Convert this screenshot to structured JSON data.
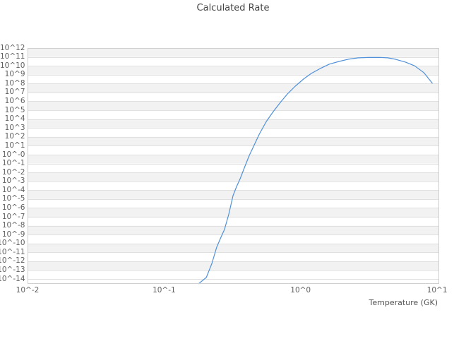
{
  "page": {
    "background": "#ffffff"
  },
  "chart_data": {
    "type": "line",
    "title": "Calculated Rate",
    "xlabel": "Temperature (GK)",
    "ylabel": "",
    "x_scale": "log",
    "y_scale": "log",
    "grid": "horizontal-bands",
    "legend": "none",
    "x_ticks": [
      "10^-2",
      "10^-1",
      "10^0",
      "10^1"
    ],
    "y_ticks": [
      "10^12",
      "10^11",
      "10^10",
      "10^9",
      "10^8",
      "10^7",
      "10^6",
      "10^5",
      "10^4",
      "10^3",
      "10^2",
      "10^1",
      "10^-0",
      "10^-1",
      "10^-2",
      "10^-3",
      "10^-4",
      "10^-5",
      "10^-6",
      "10^-7",
      "10^-8",
      "10^-9",
      "10^-10",
      "10^-11",
      "10^-12",
      "10^-13",
      "10^-14"
    ],
    "xlog_range": [
      -2,
      1.015
    ],
    "ylog_range": [
      12,
      -14.55
    ],
    "colors": {
      "line": "#4f90d9",
      "band": "#f2f2f2",
      "gridline": "#e0e0e0",
      "plot_border": "#cfcfcf",
      "title_text": "#444444",
      "tick_text": "#606060"
    },
    "series": [
      {
        "name": "calculated-rate",
        "color": "#4f90d9",
        "x": [
          0.179,
          0.204,
          0.224,
          0.243,
          0.261,
          0.277,
          0.298,
          0.32,
          0.34,
          0.361,
          0.392,
          0.421,
          0.458,
          0.498,
          0.561,
          0.631,
          0.711,
          0.801,
          0.914,
          1.05,
          1.2,
          1.39,
          1.62,
          1.91,
          2.23,
          2.64,
          3.15,
          3.77,
          4.35,
          4.95,
          5.86,
          6.84,
          7.98,
          9.21
        ],
        "y": [
          3e-15,
          1.5e-14,
          5.7e-13,
          3.8e-11,
          5e-10,
          3.7e-09,
          2.1e-07,
          2.4e-05,
          0.00026,
          0.002,
          0.053,
          0.83,
          12.9,
          200,
          5400,
          71000.0,
          760000.0,
          6800000.0,
          51000000.0,
          320000000.0,
          1400000000.0,
          4900000000.0,
          15000000000.0,
          31000000000.0,
          54000000000.0,
          78000000000.0,
          86000000000.0,
          87000000000.0,
          78000000000.0,
          54000000000.0,
          26000000000.0,
          10000000000.0,
          1700000000.0,
          110000000.0
        ]
      }
    ]
  }
}
